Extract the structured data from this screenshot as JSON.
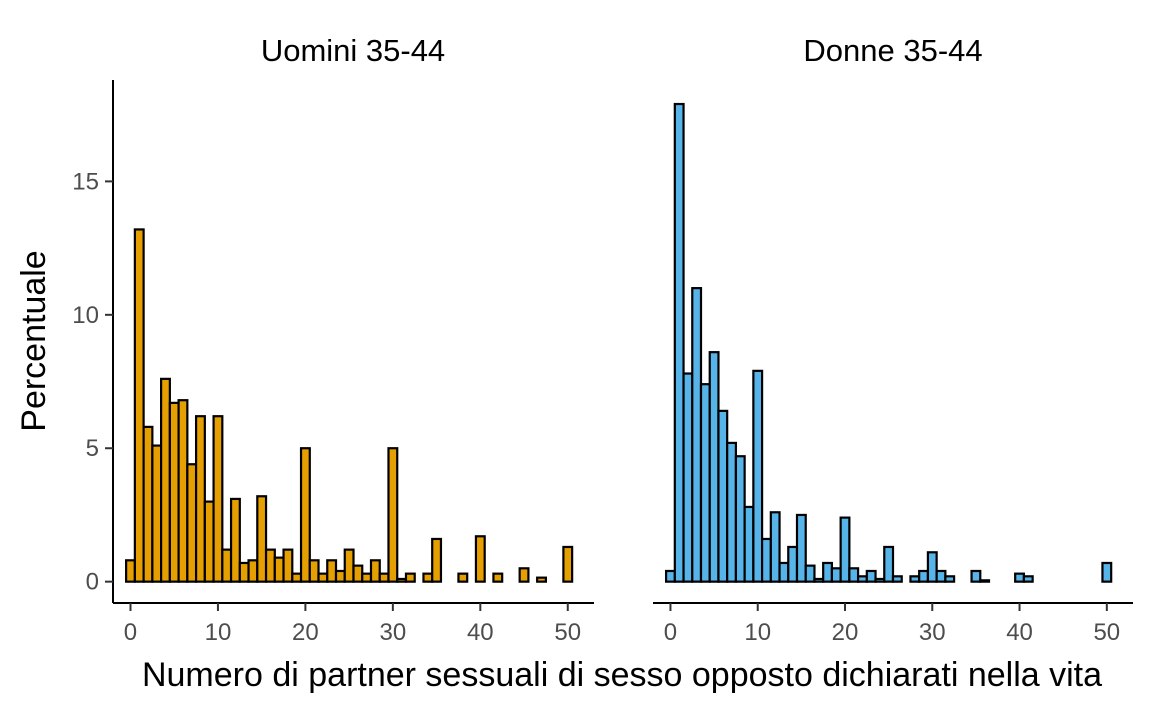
{
  "chart_data": {
    "type": "bar",
    "xlabel": "Numero di partner sessuali di sesso opposto dichiarati nella vita",
    "ylabel": "Percentuale",
    "xlim": [
      -2,
      53
    ],
    "ylim": [
      -0.8,
      18.8
    ],
    "x_ticks": [
      0,
      10,
      20,
      30,
      40,
      50
    ],
    "y_ticks": [
      0,
      5,
      10,
      15
    ],
    "grid": false,
    "panels": [
      {
        "title": "Uomini 35-44",
        "color": "#E69F00",
        "x": [
          0,
          1,
          2,
          3,
          4,
          5,
          6,
          7,
          8,
          9,
          10,
          11,
          12,
          13,
          14,
          15,
          16,
          17,
          18,
          19,
          20,
          21,
          22,
          23,
          24,
          25,
          26,
          27,
          28,
          29,
          30,
          31,
          32,
          34,
          35,
          38,
          40,
          42,
          45,
          47,
          50
        ],
        "values": [
          0.8,
          13.2,
          5.8,
          5.1,
          7.6,
          6.7,
          6.8,
          4.4,
          6.2,
          3.0,
          6.2,
          1.2,
          3.1,
          0.7,
          0.8,
          3.2,
          1.2,
          0.9,
          1.2,
          0.3,
          5.0,
          0.8,
          0.3,
          0.8,
          0.4,
          1.2,
          0.6,
          0.3,
          0.8,
          0.3,
          5.0,
          0.1,
          0.3,
          0.3,
          1.6,
          0.3,
          1.7,
          0.3,
          0.5,
          0.15,
          1.3
        ]
      },
      {
        "title": "Donne 35-44",
        "color": "#56B4E9",
        "x": [
          0,
          1,
          2,
          3,
          4,
          5,
          6,
          7,
          8,
          9,
          10,
          11,
          12,
          13,
          14,
          15,
          16,
          17,
          18,
          19,
          20,
          21,
          22,
          23,
          24,
          25,
          26,
          28,
          29,
          30,
          31,
          32,
          35,
          36,
          40,
          41,
          50
        ],
        "values": [
          0.4,
          17.9,
          7.8,
          11.0,
          7.4,
          8.6,
          6.4,
          5.2,
          4.7,
          2.8,
          7.9,
          1.6,
          2.6,
          0.7,
          1.3,
          2.5,
          0.6,
          0.1,
          0.7,
          0.5,
          2.4,
          0.5,
          0.2,
          0.4,
          0.1,
          1.3,
          0.2,
          0.2,
          0.4,
          1.1,
          0.4,
          0.2,
          0.4,
          0.05,
          0.3,
          0.2,
          0.7
        ]
      }
    ]
  }
}
